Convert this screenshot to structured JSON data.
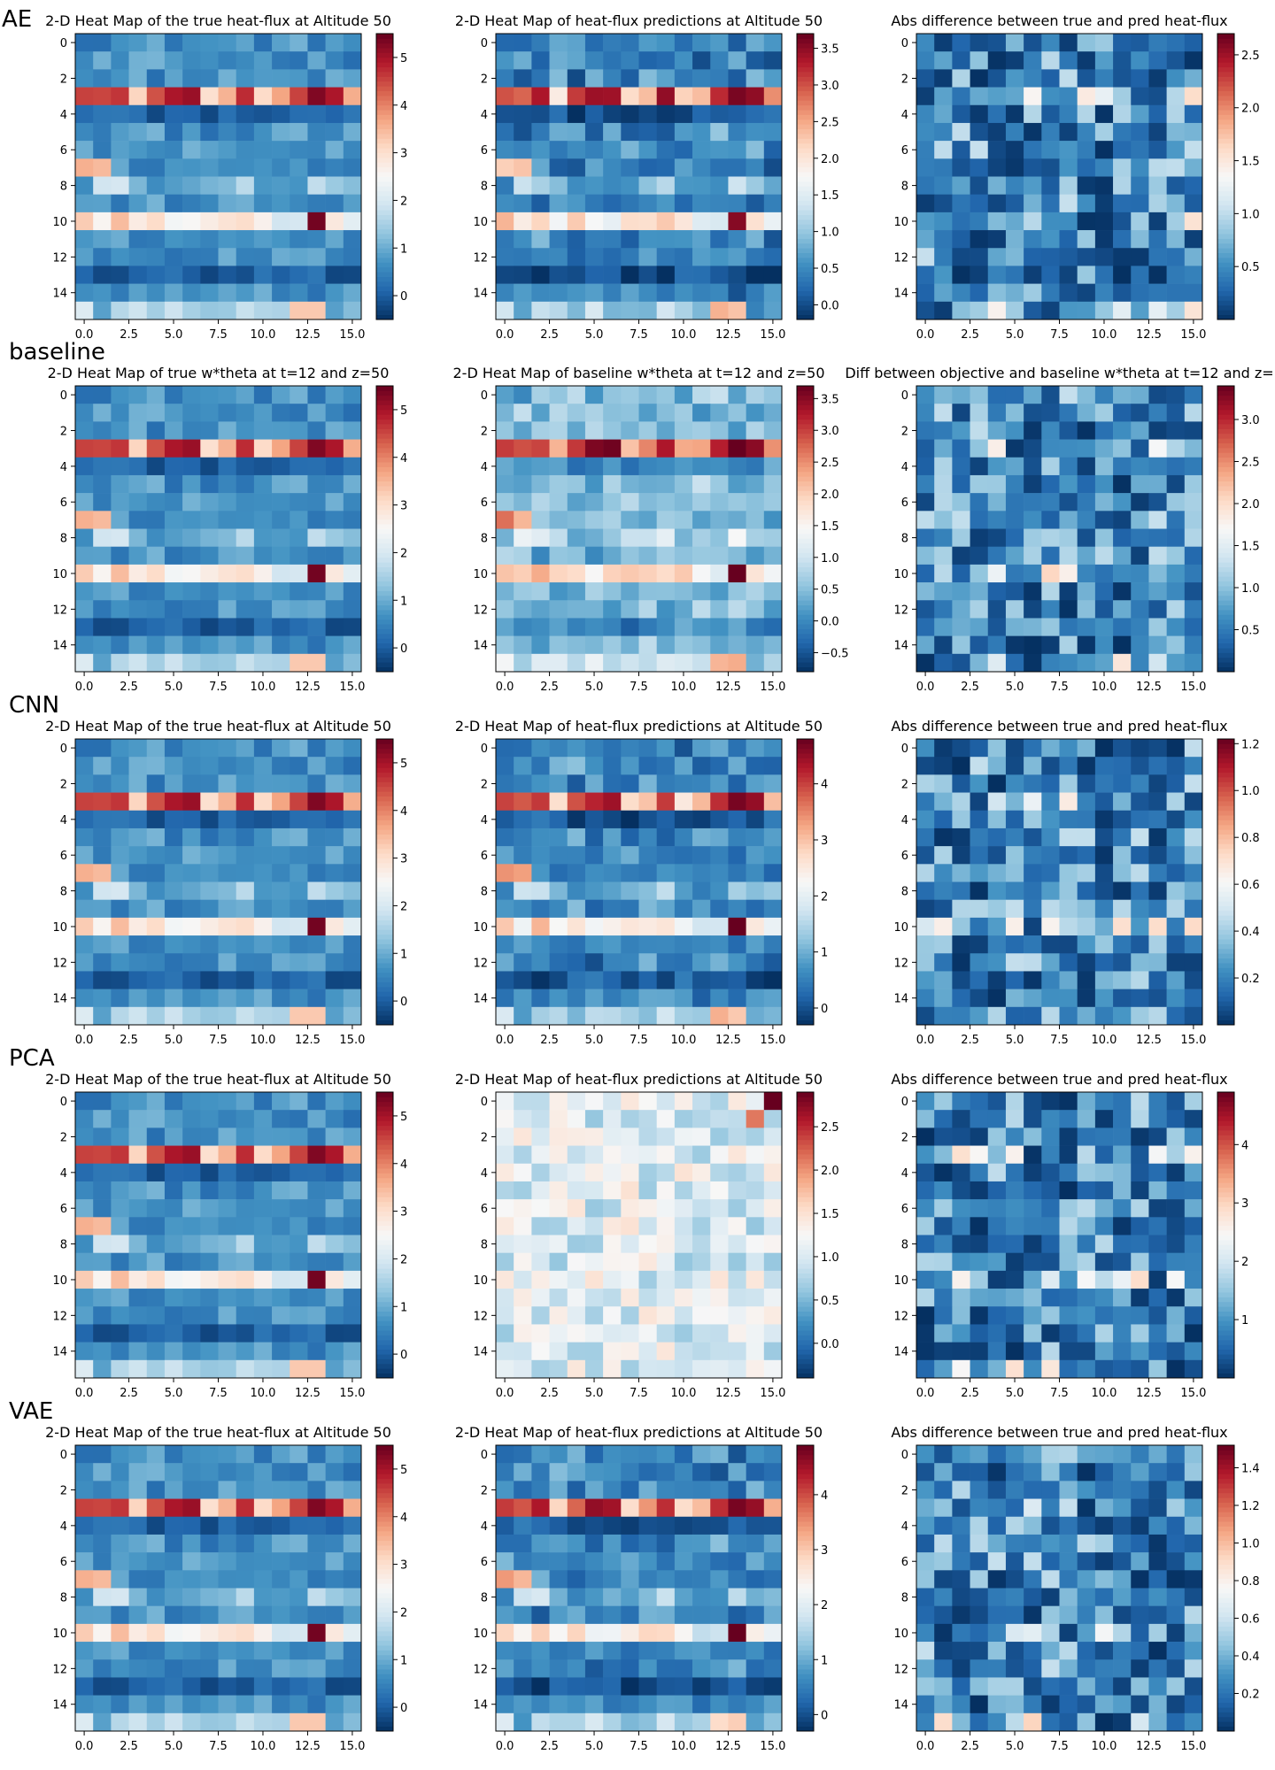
{
  "chart_data": {
    "type": "heatmap",
    "colormap": "RdBu_r",
    "grid": false,
    "x_ticks": [
      "0.0",
      "2.5",
      "5.0",
      "7.5",
      "10.0",
      "12.5",
      "15.0"
    ],
    "y_ticks": [
      "0",
      "2",
      "4",
      "6",
      "8",
      "10",
      "12",
      "14"
    ],
    "rows": [
      {
        "label": "AE",
        "panels": [
          {
            "title": "2-D Heat Map of the true heat-flux at Altitude 50",
            "vmin": -0.5,
            "vmax": 5.5,
            "colorbar_ticks": [
              "0",
              "1",
              "2",
              "3",
              "4",
              "5"
            ],
            "kind": "true"
          },
          {
            "title": "2-D Heat Map of heat-flux predictions at Altitude 50",
            "vmin": -0.2,
            "vmax": 3.7,
            "colorbar_ticks": [
              "0.0",
              "0.5",
              "1.0",
              "1.5",
              "2.0",
              "2.5",
              "3.0",
              "3.5"
            ],
            "kind": "pred"
          },
          {
            "title": "Abs difference between true and pred heat-flux",
            "vmin": 0.0,
            "vmax": 2.7,
            "colorbar_ticks": [
              "0.5",
              "1.0",
              "1.5",
              "2.0",
              "2.5"
            ],
            "kind": "diff"
          }
        ]
      },
      {
        "label": "baseline",
        "panels": [
          {
            "title": "2-D Heat Map of true w*theta at t=12 and z=50",
            "vmin": -0.5,
            "vmax": 5.5,
            "colorbar_ticks": [
              "0",
              "1",
              "2",
              "3",
              "4",
              "5"
            ],
            "kind": "true"
          },
          {
            "title": "2-D Heat Map of baseline w*theta at t=12 and z=50",
            "vmin": -0.8,
            "vmax": 3.7,
            "colorbar_ticks": [
              "−0.5",
              "0.0",
              "0.5",
              "1.0",
              "1.5",
              "2.0",
              "2.5",
              "3.0",
              "3.5"
            ],
            "kind": "pred"
          },
          {
            "title": "Diff between objective and baseline w*theta at t=12 and z=",
            "vmin": 0.0,
            "vmax": 3.4,
            "colorbar_ticks": [
              "0.5",
              "1.0",
              "1.5",
              "2.0",
              "2.5",
              "3.0"
            ],
            "kind": "diff"
          }
        ]
      },
      {
        "label": "CNN",
        "panels": [
          {
            "title": "2-D Heat Map of the true heat-flux at Altitude 50",
            "vmin": -0.5,
            "vmax": 5.5,
            "colorbar_ticks": [
              "0",
              "1",
              "2",
              "3",
              "4",
              "5"
            ],
            "kind": "true"
          },
          {
            "title": "2-D Heat Map of heat-flux predictions at Altitude 50",
            "vmin": -0.3,
            "vmax": 4.8,
            "colorbar_ticks": [
              "0",
              "1",
              "2",
              "3",
              "4"
            ],
            "kind": "pred"
          },
          {
            "title": "Abs difference between true and pred heat-flux",
            "vmin": 0.0,
            "vmax": 1.22,
            "colorbar_ticks": [
              "0.2",
              "0.4",
              "0.6",
              "0.8",
              "1.0",
              "1.2"
            ],
            "kind": "diff"
          }
        ]
      },
      {
        "label": "PCA",
        "panels": [
          {
            "title": "2-D Heat Map of the true heat-flux at Altitude 50",
            "vmin": -0.5,
            "vmax": 5.5,
            "colorbar_ticks": [
              "0",
              "1",
              "2",
              "3",
              "4",
              "5"
            ],
            "kind": "true"
          },
          {
            "title": "2-D Heat Map of heat-flux predictions at Altitude 50",
            "vmin": -0.4,
            "vmax": 2.9,
            "colorbar_ticks": [
              "0.0",
              "0.5",
              "1.0",
              "1.5",
              "2.0",
              "2.5"
            ],
            "kind": "pcapred"
          },
          {
            "title": "Abs difference between true and pred heat-flux",
            "vmin": 0.0,
            "vmax": 4.9,
            "colorbar_ticks": [
              "1",
              "2",
              "3",
              "4"
            ],
            "kind": "diff"
          }
        ]
      },
      {
        "label": "VAE",
        "panels": [
          {
            "title": "2-D Heat Map of the true heat-flux at Altitude 50",
            "vmin": -0.5,
            "vmax": 5.5,
            "colorbar_ticks": [
              "0",
              "1",
              "2",
              "3",
              "4",
              "5"
            ],
            "kind": "true"
          },
          {
            "title": "2-D Heat Map of heat-flux predictions at Altitude 50",
            "vmin": -0.3,
            "vmax": 4.9,
            "colorbar_ticks": [
              "0",
              "1",
              "2",
              "3",
              "4"
            ],
            "kind": "pred"
          },
          {
            "title": "Abs difference between true and pred heat-flux",
            "vmin": 0.0,
            "vmax": 1.52,
            "colorbar_ticks": [
              "0.2",
              "0.4",
              "0.6",
              "0.8",
              "1.0",
              "1.2",
              "1.4"
            ],
            "kind": "diff"
          }
        ]
      }
    ]
  }
}
